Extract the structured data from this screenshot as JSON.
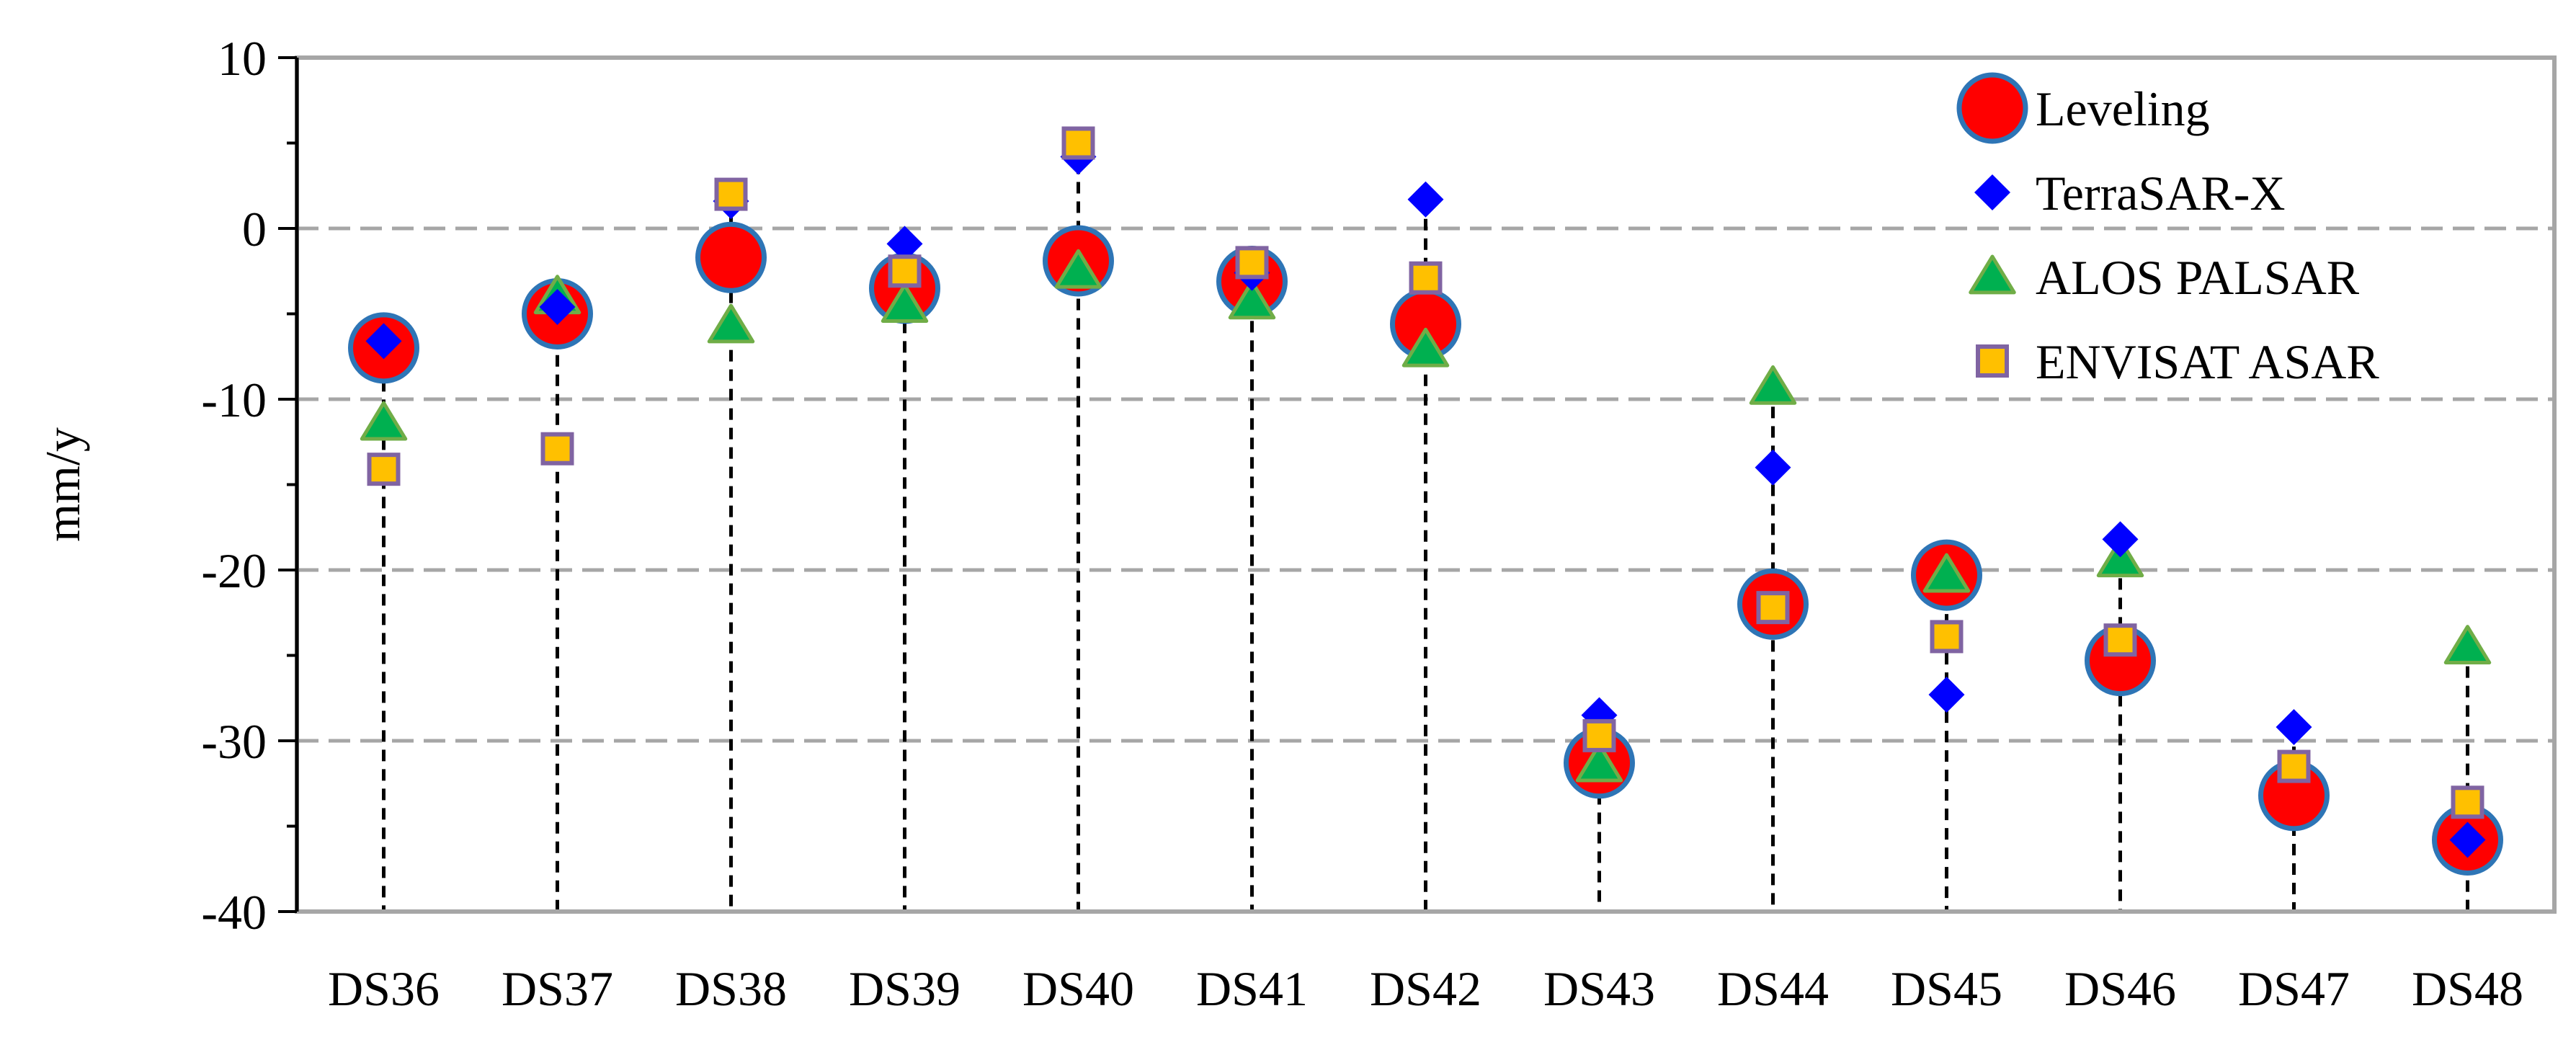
{
  "chart_data": {
    "type": "scatter",
    "title": "",
    "xlabel": "",
    "ylabel": "mm/y",
    "ylim": [
      -40,
      10
    ],
    "yticks": [
      -40,
      -30,
      -20,
      -10,
      0,
      10
    ],
    "ytick_labels": [
      "-40",
      "-30",
      "-20",
      "-10",
      "0",
      "10"
    ],
    "grid": true,
    "legend_position": "top-right",
    "categories": [
      "DS36",
      "DS37",
      "DS38",
      "DS39",
      "DS40",
      "DS41",
      "DS42",
      "DS43",
      "DS44",
      "DS45",
      "DS46",
      "DS47",
      "DS48"
    ],
    "series": [
      {
        "name": "Leveling",
        "marker": "circle",
        "color": "#ff0000",
        "edge": "#2e75b6",
        "values": [
          -7,
          -5,
          -1.7,
          -3.5,
          -1.9,
          -3.1,
          -5.6,
          -31.3,
          -22,
          -20.3,
          -25.3,
          -33.2,
          -35.8
        ]
      },
      {
        "name": "TerraSAR-X",
        "marker": "diamond",
        "color": "#0000ff",
        "values": [
          -6.6,
          -4.6,
          1.6,
          -0.9,
          4.2,
          -2.6,
          1.7,
          -28.5,
          -14,
          -27.3,
          -18.2,
          -29.2,
          -35.8
        ]
      },
      {
        "name": "ALOS PALSAR",
        "marker": "triangle",
        "color": "#00b050",
        "edge": "#70ad47",
        "values": [
          -11.4,
          -4,
          -5.7,
          -4.5,
          -2.5,
          -4.3,
          -7.1,
          -31.4,
          -9.3,
          -20.3,
          -19.4,
          null,
          -24.5
        ]
      },
      {
        "name": "ENVISAT ASAR",
        "marker": "square",
        "color": "#ffc000",
        "edge": "#8064a2",
        "values": [
          -14.1,
          -12.9,
          2,
          -2.5,
          5,
          -2,
          -2.9,
          -29.7,
          -22.2,
          -23.9,
          -24.1,
          -31.5,
          -33.6
        ]
      }
    ]
  }
}
